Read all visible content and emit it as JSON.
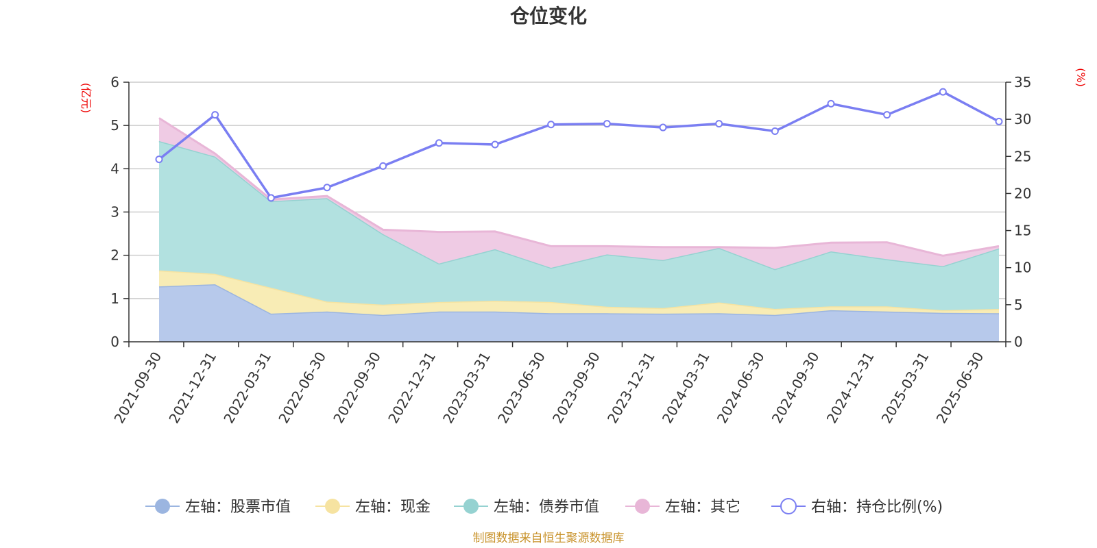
{
  "title": "仓位变化",
  "source_text": "制图数据来自恒生聚源数据库",
  "chart_data": {
    "type": "area",
    "categories": [
      "2021-09-30",
      "2021-12-31",
      "2022-03-31",
      "2022-06-30",
      "2022-09-30",
      "2022-12-31",
      "2023-03-31",
      "2023-06-30",
      "2023-09-30",
      "2023-12-31",
      "2024-03-31",
      "2024-06-30",
      "2024-09-30",
      "2024-12-31",
      "2025-03-31",
      "2025-06-30"
    ],
    "y_left": {
      "unit_label": "(亿元)",
      "ticks": [
        "0",
        "1",
        "2",
        "3",
        "4",
        "5",
        "6"
      ],
      "min": 0,
      "max": 6
    },
    "y_right": {
      "unit_label": "(%)",
      "ticks": [
        "0",
        "5",
        "10",
        "15",
        "20",
        "25",
        "30",
        "35"
      ],
      "min": 0,
      "max": 35
    },
    "stacked_series": [
      {
        "name": "左轴：股票市值",
        "fill": "#b7c9eb",
        "line": "#9bb5e0",
        "values": [
          1.28,
          1.33,
          0.65,
          0.7,
          0.62,
          0.7,
          0.7,
          0.66,
          0.66,
          0.65,
          0.66,
          0.62,
          0.73,
          0.7,
          0.67,
          0.66
        ]
      },
      {
        "name": "左轴：现金",
        "fill": "#f8ecb5",
        "line": "#f6e3a1",
        "values": [
          0.37,
          0.24,
          0.6,
          0.23,
          0.24,
          0.22,
          0.25,
          0.26,
          0.15,
          0.13,
          0.25,
          0.14,
          0.09,
          0.12,
          0.06,
          0.1
        ]
      },
      {
        "name": "左轴：债券市值",
        "fill": "#b2e1e0",
        "line": "#95d2d1",
        "values": [
          2.99,
          2.71,
          2.0,
          2.39,
          1.63,
          0.89,
          1.19,
          0.79,
          1.21,
          1.11,
          1.26,
          0.92,
          1.27,
          1.09,
          1.02,
          1.4
        ]
      },
      {
        "name": "左轴：其它",
        "fill": "#efcbe4",
        "line": "#e8b6d7",
        "values": [
          0.53,
          0.07,
          0.04,
          0.05,
          0.1,
          0.73,
          0.41,
          0.5,
          0.19,
          0.3,
          0.02,
          0.49,
          0.2,
          0.39,
          0.24,
          0.05
        ]
      }
    ],
    "line_series": {
      "name": "右轴：持仓比例(%)",
      "color": "#7a7ef2",
      "values": [
        24.6,
        30.6,
        19.4,
        20.8,
        23.7,
        26.8,
        26.6,
        29.3,
        29.4,
        28.9,
        29.4,
        28.4,
        32.1,
        30.6,
        33.7,
        29.7
      ]
    },
    "grid": true,
    "legend_position": "bottom"
  }
}
